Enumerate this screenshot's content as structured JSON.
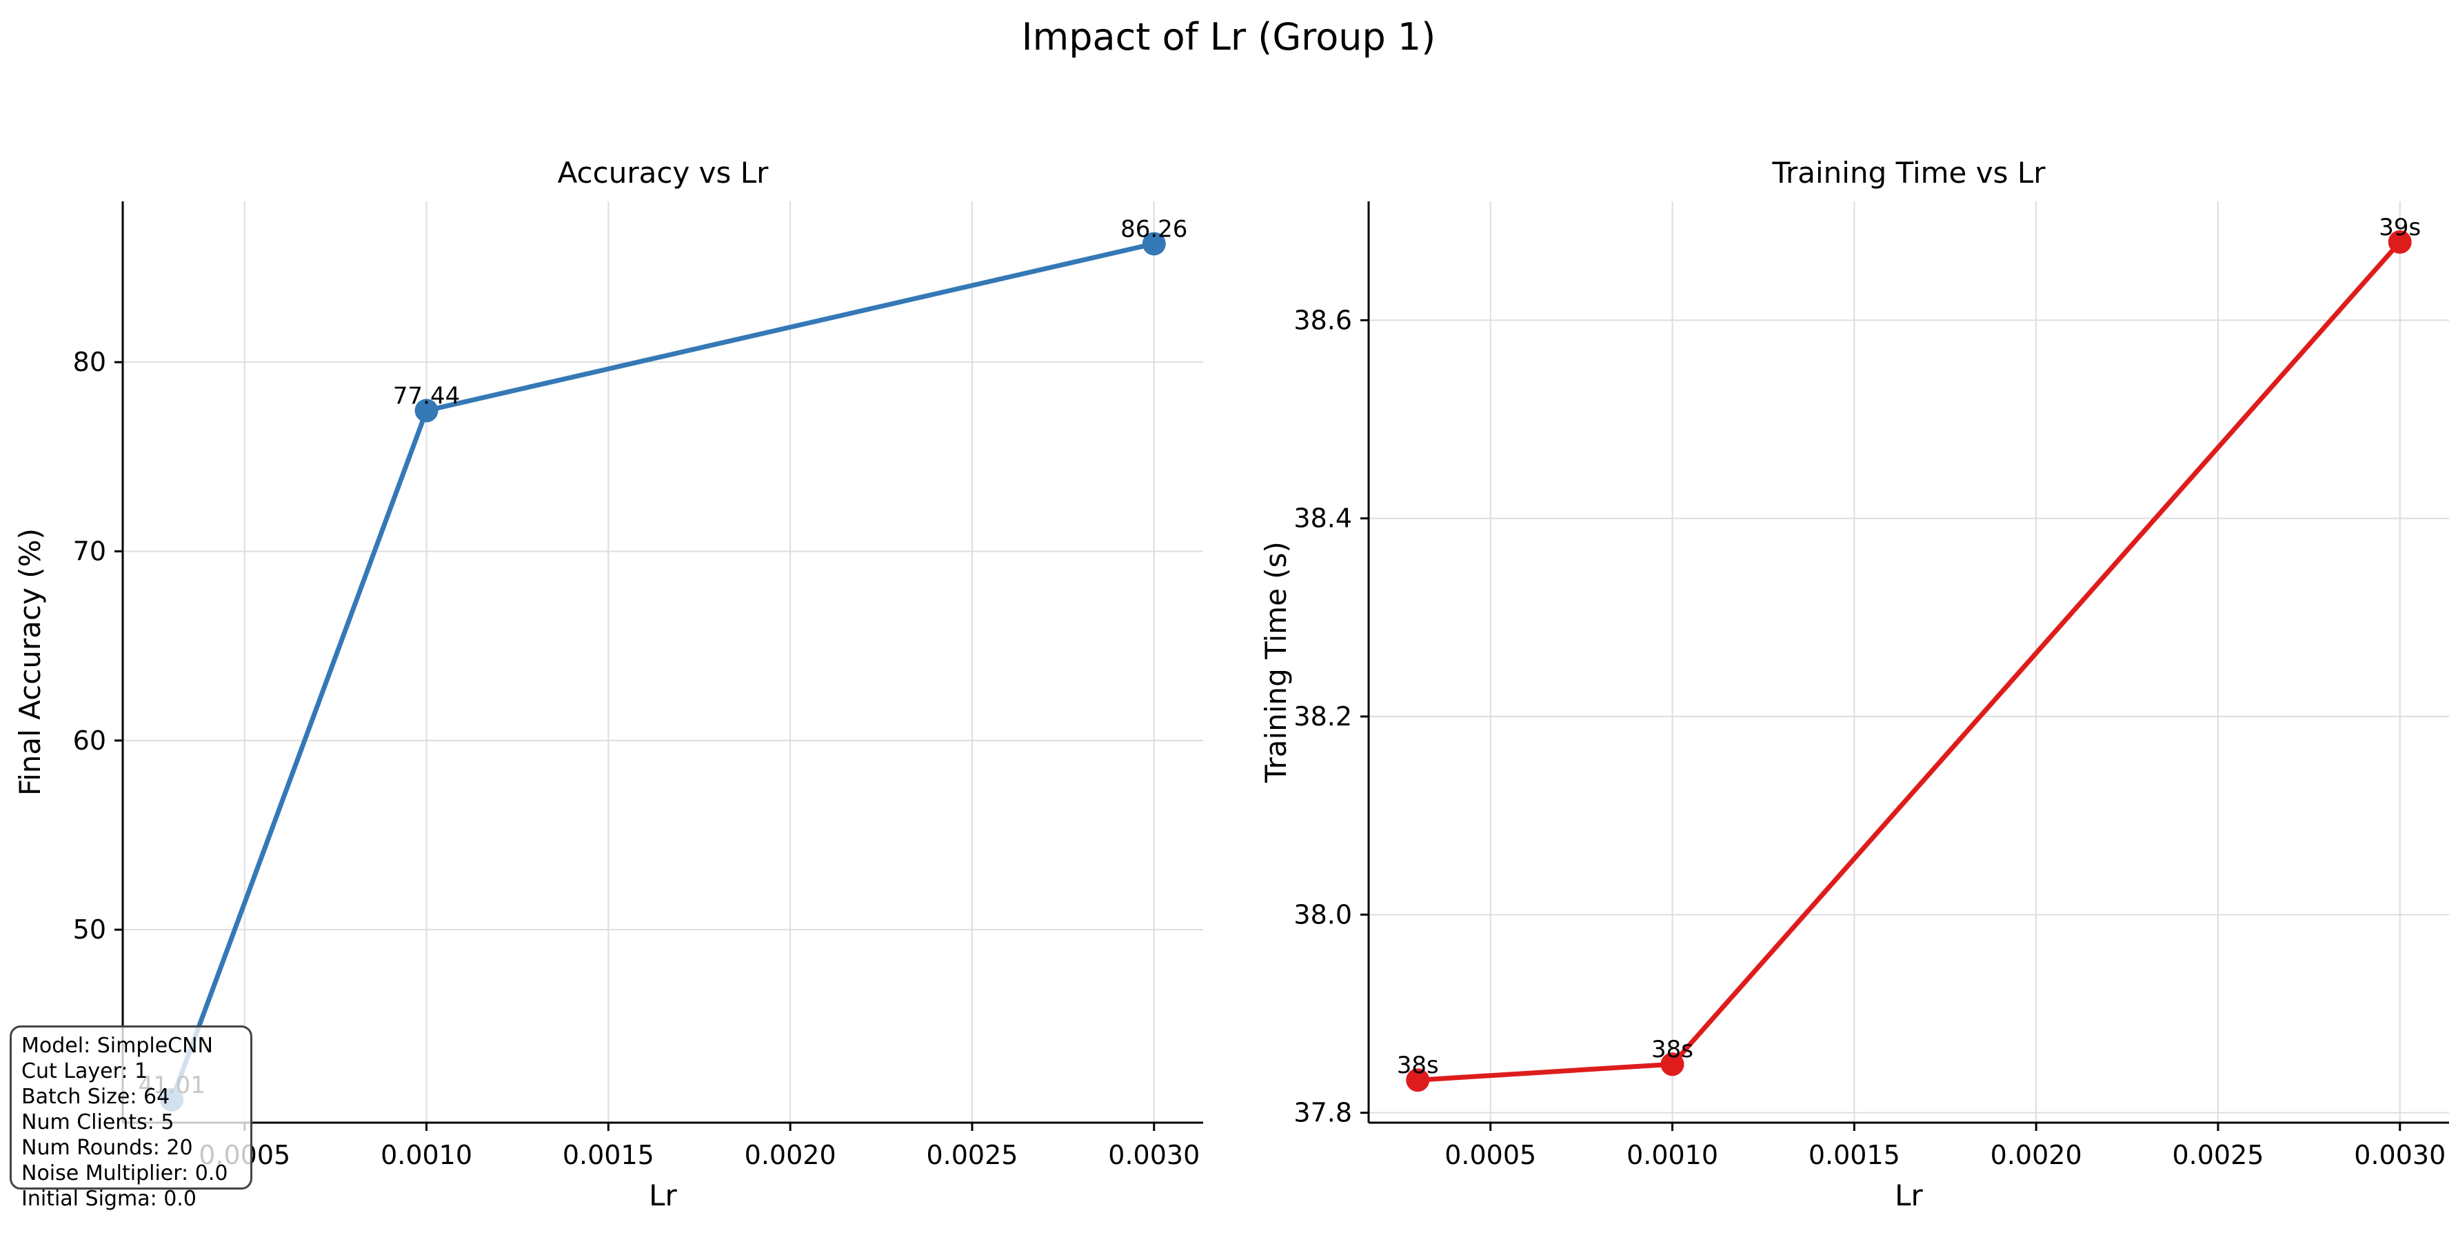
{
  "figure": {
    "title": "Impact of Lr (Group 1)"
  },
  "chart_data": [
    {
      "type": "line",
      "title": "Accuracy vs Lr",
      "xlabel": "Lr",
      "ylabel": "Final Accuracy (%)",
      "x": [
        0.0003,
        0.001,
        0.003
      ],
      "series": [
        {
          "values": [
            41.01,
            77.44,
            86.26
          ],
          "color": "#3479b6"
        }
      ],
      "data_labels": [
        "41.01",
        "77.44",
        "86.26"
      ],
      "xlim": [
        0.000165,
        0.003135
      ],
      "ylim": [
        39.8,
        88.5
      ],
      "xticks": [
        0.0005,
        0.001,
        0.0015,
        0.002,
        0.0025,
        0.003
      ],
      "xtick_labels": [
        "0.0005",
        "0.0010",
        "0.0015",
        "0.0020",
        "0.0025",
        "0.0030"
      ],
      "yticks": [
        50,
        60,
        70,
        80
      ],
      "ytick_labels": [
        "50",
        "60",
        "70",
        "80"
      ],
      "grid": true,
      "marker": "circle"
    },
    {
      "type": "line",
      "title": "Training Time vs Lr",
      "xlabel": "Lr",
      "ylabel": "Training Time (s)",
      "x": [
        0.0003,
        0.001,
        0.003
      ],
      "series": [
        {
          "values": [
            37.833,
            37.849,
            38.679
          ],
          "color": "#de1c1c"
        }
      ],
      "data_labels": [
        "38s",
        "38s",
        "39s"
      ],
      "xlim": [
        0.000165,
        0.003135
      ],
      "ylim": [
        37.79,
        38.72
      ],
      "xticks": [
        0.0005,
        0.001,
        0.0015,
        0.002,
        0.0025,
        0.003
      ],
      "xtick_labels": [
        "0.0005",
        "0.0010",
        "0.0015",
        "0.0020",
        "0.0025",
        "0.0030"
      ],
      "yticks": [
        37.8,
        38.0,
        38.2,
        38.4,
        38.6
      ],
      "ytick_labels": [
        "37.8",
        "38.0",
        "38.2",
        "38.4",
        "38.6"
      ],
      "grid": true,
      "marker": "circle"
    }
  ],
  "info_box": {
    "lines": [
      "Model: SimpleCNN",
      "Cut Layer: 1",
      "Batch Size: 64",
      "Num Clients: 5",
      "Num Rounds: 20",
      "Noise Multiplier: 0.0",
      "Initial Sigma: 0.0"
    ]
  }
}
